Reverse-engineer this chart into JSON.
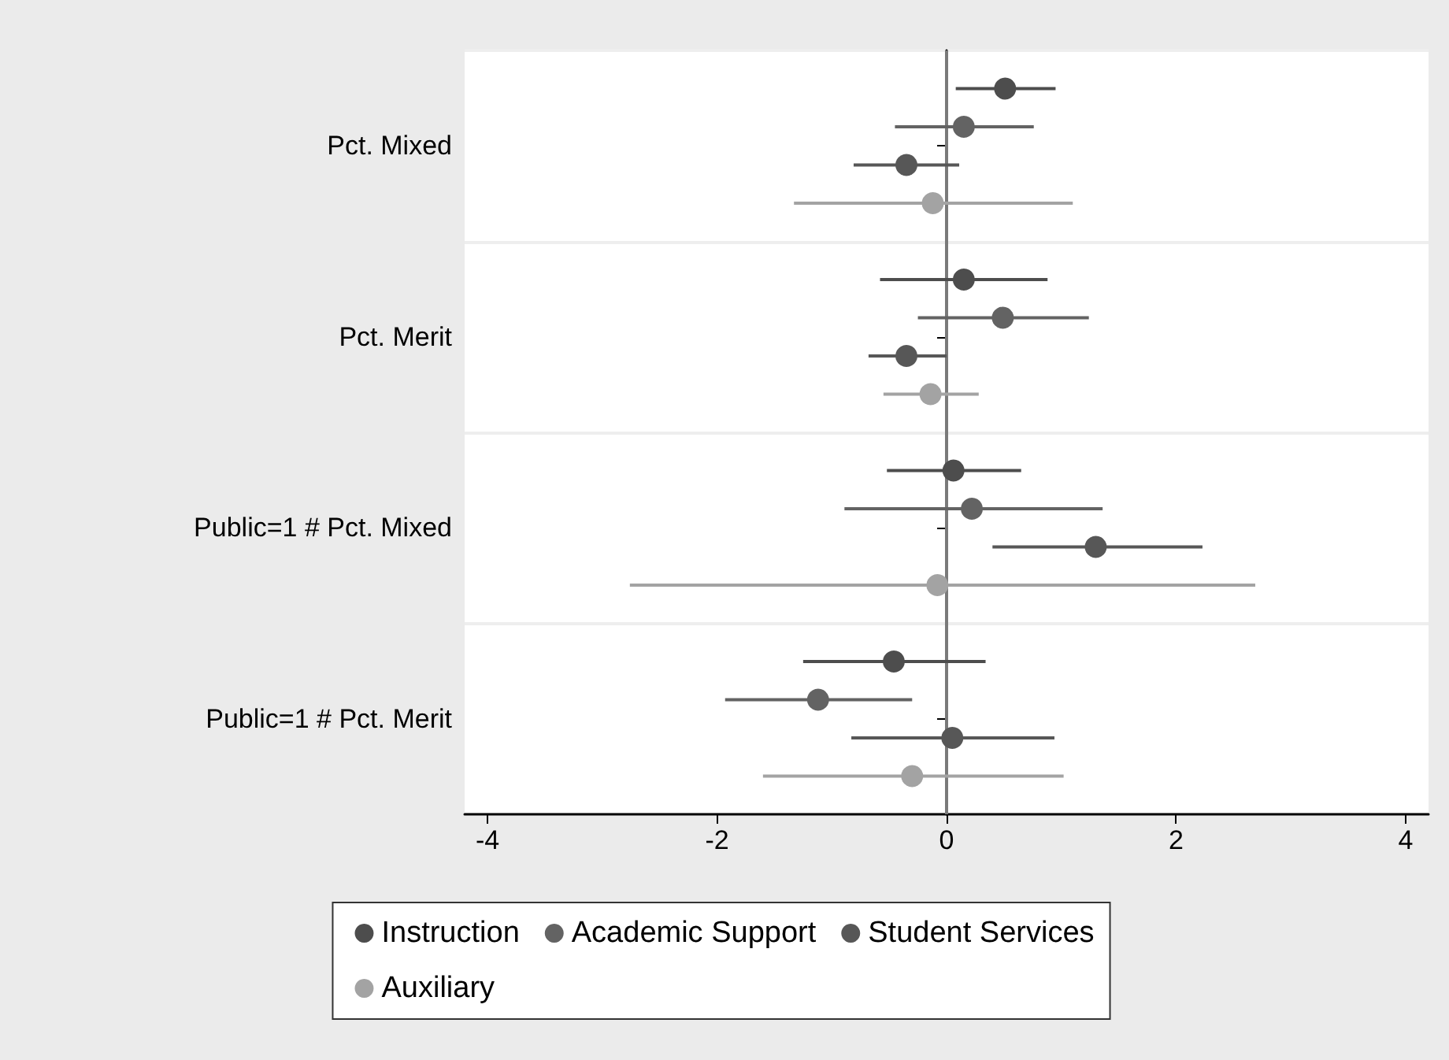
{
  "chart_data": {
    "type": "scatter",
    "orientation": "horizontal",
    "categories": [
      "Pct. Mixed",
      "Pct. Merit",
      "Public=1 # Pct. Mixed",
      "Public=1 # Pct. Merit"
    ],
    "series": [
      {
        "name": "Instruction",
        "color": "#4d4d4d",
        "values": [
          0.51,
          0.15,
          0.06,
          -0.46
        ],
        "errors": [
          [
            0.08,
            0.95
          ],
          [
            -0.58,
            0.88
          ],
          [
            -0.52,
            0.65
          ],
          [
            -1.25,
            0.34
          ]
        ]
      },
      {
        "name": "Academic Support",
        "color": "#636363",
        "values": [
          0.15,
          0.49,
          0.22,
          -1.12
        ],
        "errors": [
          [
            -0.45,
            0.76
          ],
          [
            -0.25,
            1.24
          ],
          [
            -0.89,
            1.36
          ],
          [
            -1.93,
            -0.3
          ]
        ]
      },
      {
        "name": "Student Services",
        "color": "#575757",
        "values": [
          -0.35,
          -0.35,
          1.3,
          0.05
        ],
        "errors": [
          [
            -0.81,
            0.11
          ],
          [
            -0.68,
            0.0
          ],
          [
            0.4,
            2.23
          ],
          [
            -0.83,
            0.94
          ]
        ]
      },
      {
        "name": "Auxiliary",
        "color": "#a3a3a3",
        "values": [
          -0.12,
          -0.14,
          -0.08,
          -0.3
        ],
        "errors": [
          [
            -1.33,
            1.1
          ],
          [
            -0.55,
            0.28
          ],
          [
            -2.76,
            2.69
          ],
          [
            -1.6,
            1.02
          ]
        ]
      }
    ],
    "xlim": [
      -4.2,
      4.2
    ],
    "xticks": [
      -4,
      -2,
      0,
      2,
      4
    ],
    "ref_lines": [
      {
        "axis": "x",
        "value": 0,
        "color": "#7a7a7a"
      }
    ],
    "grid": "y",
    "legend": "bottom",
    "marker": "circle"
  }
}
